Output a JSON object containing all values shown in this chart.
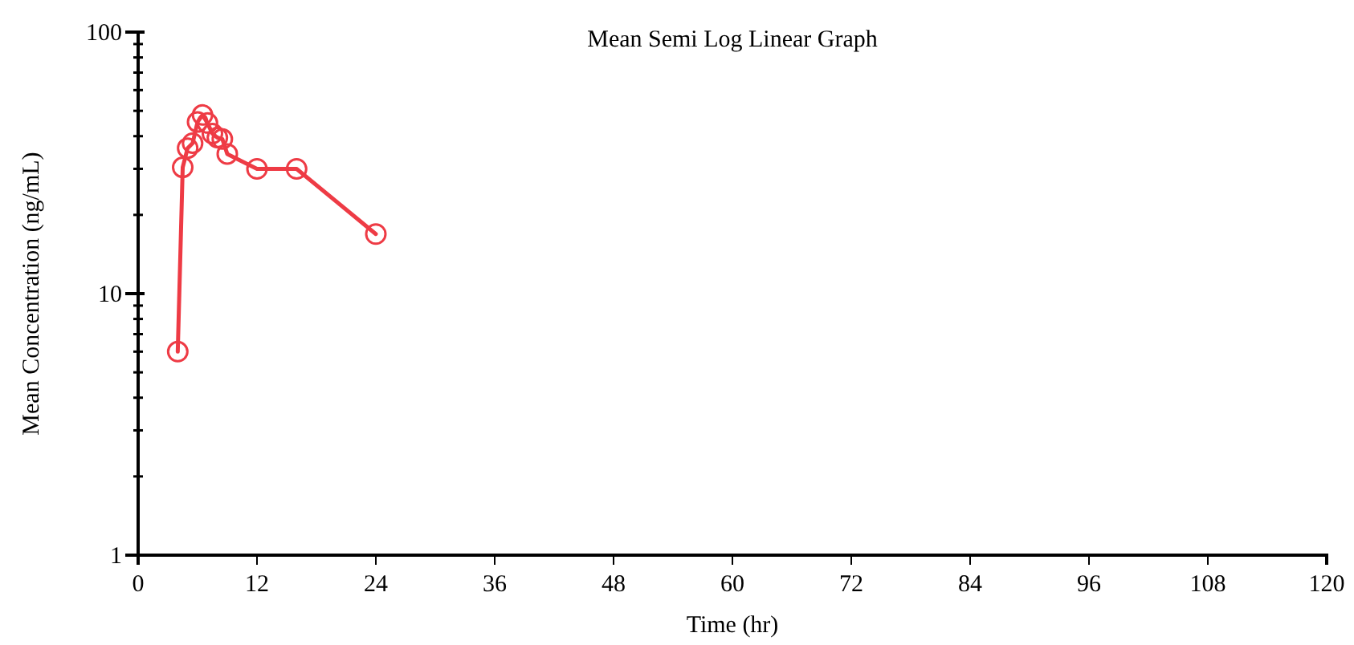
{
  "chart_data": {
    "type": "line",
    "title": "Mean Semi Log Linear Graph",
    "xlabel": "Time (hr)",
    "ylabel": "Mean Concentration (ng/mL)",
    "x": [
      4,
      4.5,
      5,
      5.5,
      6,
      6.5,
      7,
      7.5,
      8,
      8.5,
      9,
      12,
      16,
      24
    ],
    "series": [
      {
        "color": "#ee3b45",
        "values": [
          6.0,
          30.4,
          36,
          37.6,
          45.3,
          48.2,
          44.9,
          40.9,
          39.5,
          39,
          34.2,
          30,
          30,
          16.9
        ]
      }
    ],
    "xlim": [
      0,
      120
    ],
    "xticks": [
      0,
      12,
      24,
      36,
      48,
      60,
      72,
      84,
      96,
      108,
      120
    ],
    "ylim": [
      1,
      100
    ],
    "yticks": [
      1,
      {
        "value": 2,
        "label": null
      },
      {
        "value": 3,
        "label": null
      },
      {
        "value": 4,
        "label": null
      },
      {
        "value": 5,
        "label": null
      },
      {
        "value": 6,
        "label": null
      },
      {
        "value": 7,
        "label": null
      },
      {
        "value": 8,
        "label": null
      },
      {
        "value": 9,
        "label": null
      },
      10,
      {
        "value": 20,
        "label": null
      },
      {
        "value": 30,
        "label": null
      },
      {
        "value": 40,
        "label": null
      },
      {
        "value": 50,
        "label": null
      },
      {
        "value": 60,
        "label": null
      },
      {
        "value": 70,
        "label": null
      },
      {
        "value": 80,
        "label": null
      },
      {
        "value": 90,
        "label": null
      },
      100
    ],
    "log": true,
    "grid": false,
    "marker": "circle",
    "line_style": "solid"
  }
}
